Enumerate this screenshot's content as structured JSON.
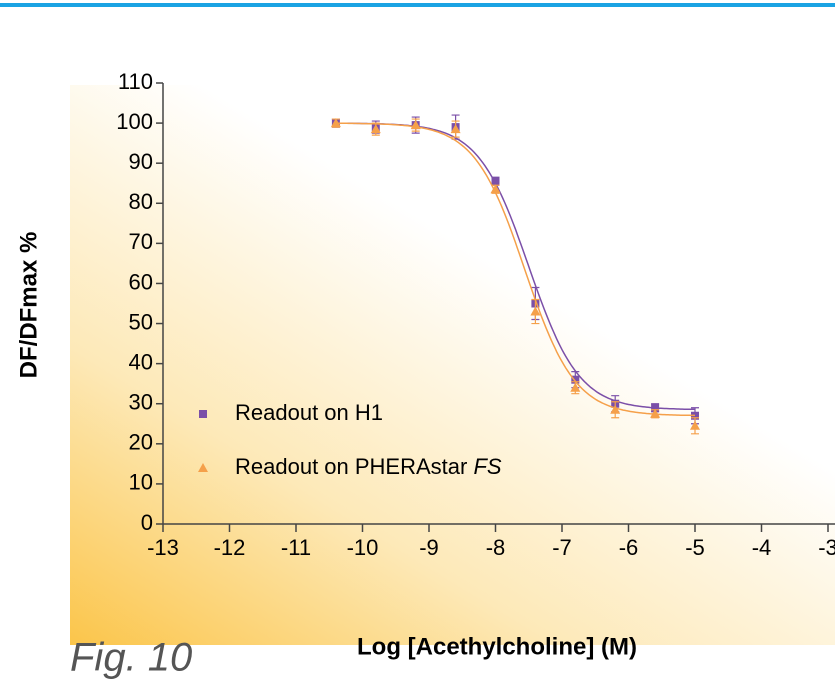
{
  "chart_data": {
    "type": "scatter",
    "x_label": "Log [Acethylcholine] (M)",
    "y_label": "DF/DFmax %",
    "figure_label": "Fig. 10",
    "xlim": [
      -13,
      -3
    ],
    "xticks": [
      -13,
      -12,
      -11,
      -10,
      -9,
      -8,
      -7,
      -6,
      -5,
      -4,
      -3
    ],
    "ylim": [
      0,
      110
    ],
    "yticks": [
      0,
      10,
      20,
      30,
      40,
      50,
      60,
      70,
      80,
      90,
      100,
      110
    ],
    "x": [
      -10.4,
      -9.8,
      -9.2,
      -8.6,
      -8,
      -7.4,
      -6.8,
      -6.2,
      -5.6,
      -5
    ],
    "series": [
      {
        "name": "Readout on H1",
        "color": "#7b4fa8",
        "marker": "square",
        "values": [
          100,
          99,
          99.5,
          99,
          85.5,
          55,
          36,
          30,
          29,
          27
        ],
        "errors": [
          1,
          1.5,
          2,
          3,
          1,
          4,
          2,
          2,
          1,
          2
        ],
        "fit": {
          "top": 100,
          "bottom": 28.5,
          "logec50": -7.5,
          "hill": 1.15
        }
      },
      {
        "name": "Readout on PHERAstar FS",
        "color": "#f5a04a",
        "marker": "triangle",
        "values": [
          100,
          98.5,
          99.5,
          98.5,
          83.5,
          53,
          34,
          28.5,
          27.5,
          24.5
        ],
        "errors": [
          1,
          1.5,
          1.5,
          2,
          1,
          3,
          1.5,
          2,
          1,
          2
        ],
        "fit": {
          "top": 100,
          "bottom": 27,
          "logec50": -7.56,
          "hill": 1.15
        }
      }
    ]
  }
}
